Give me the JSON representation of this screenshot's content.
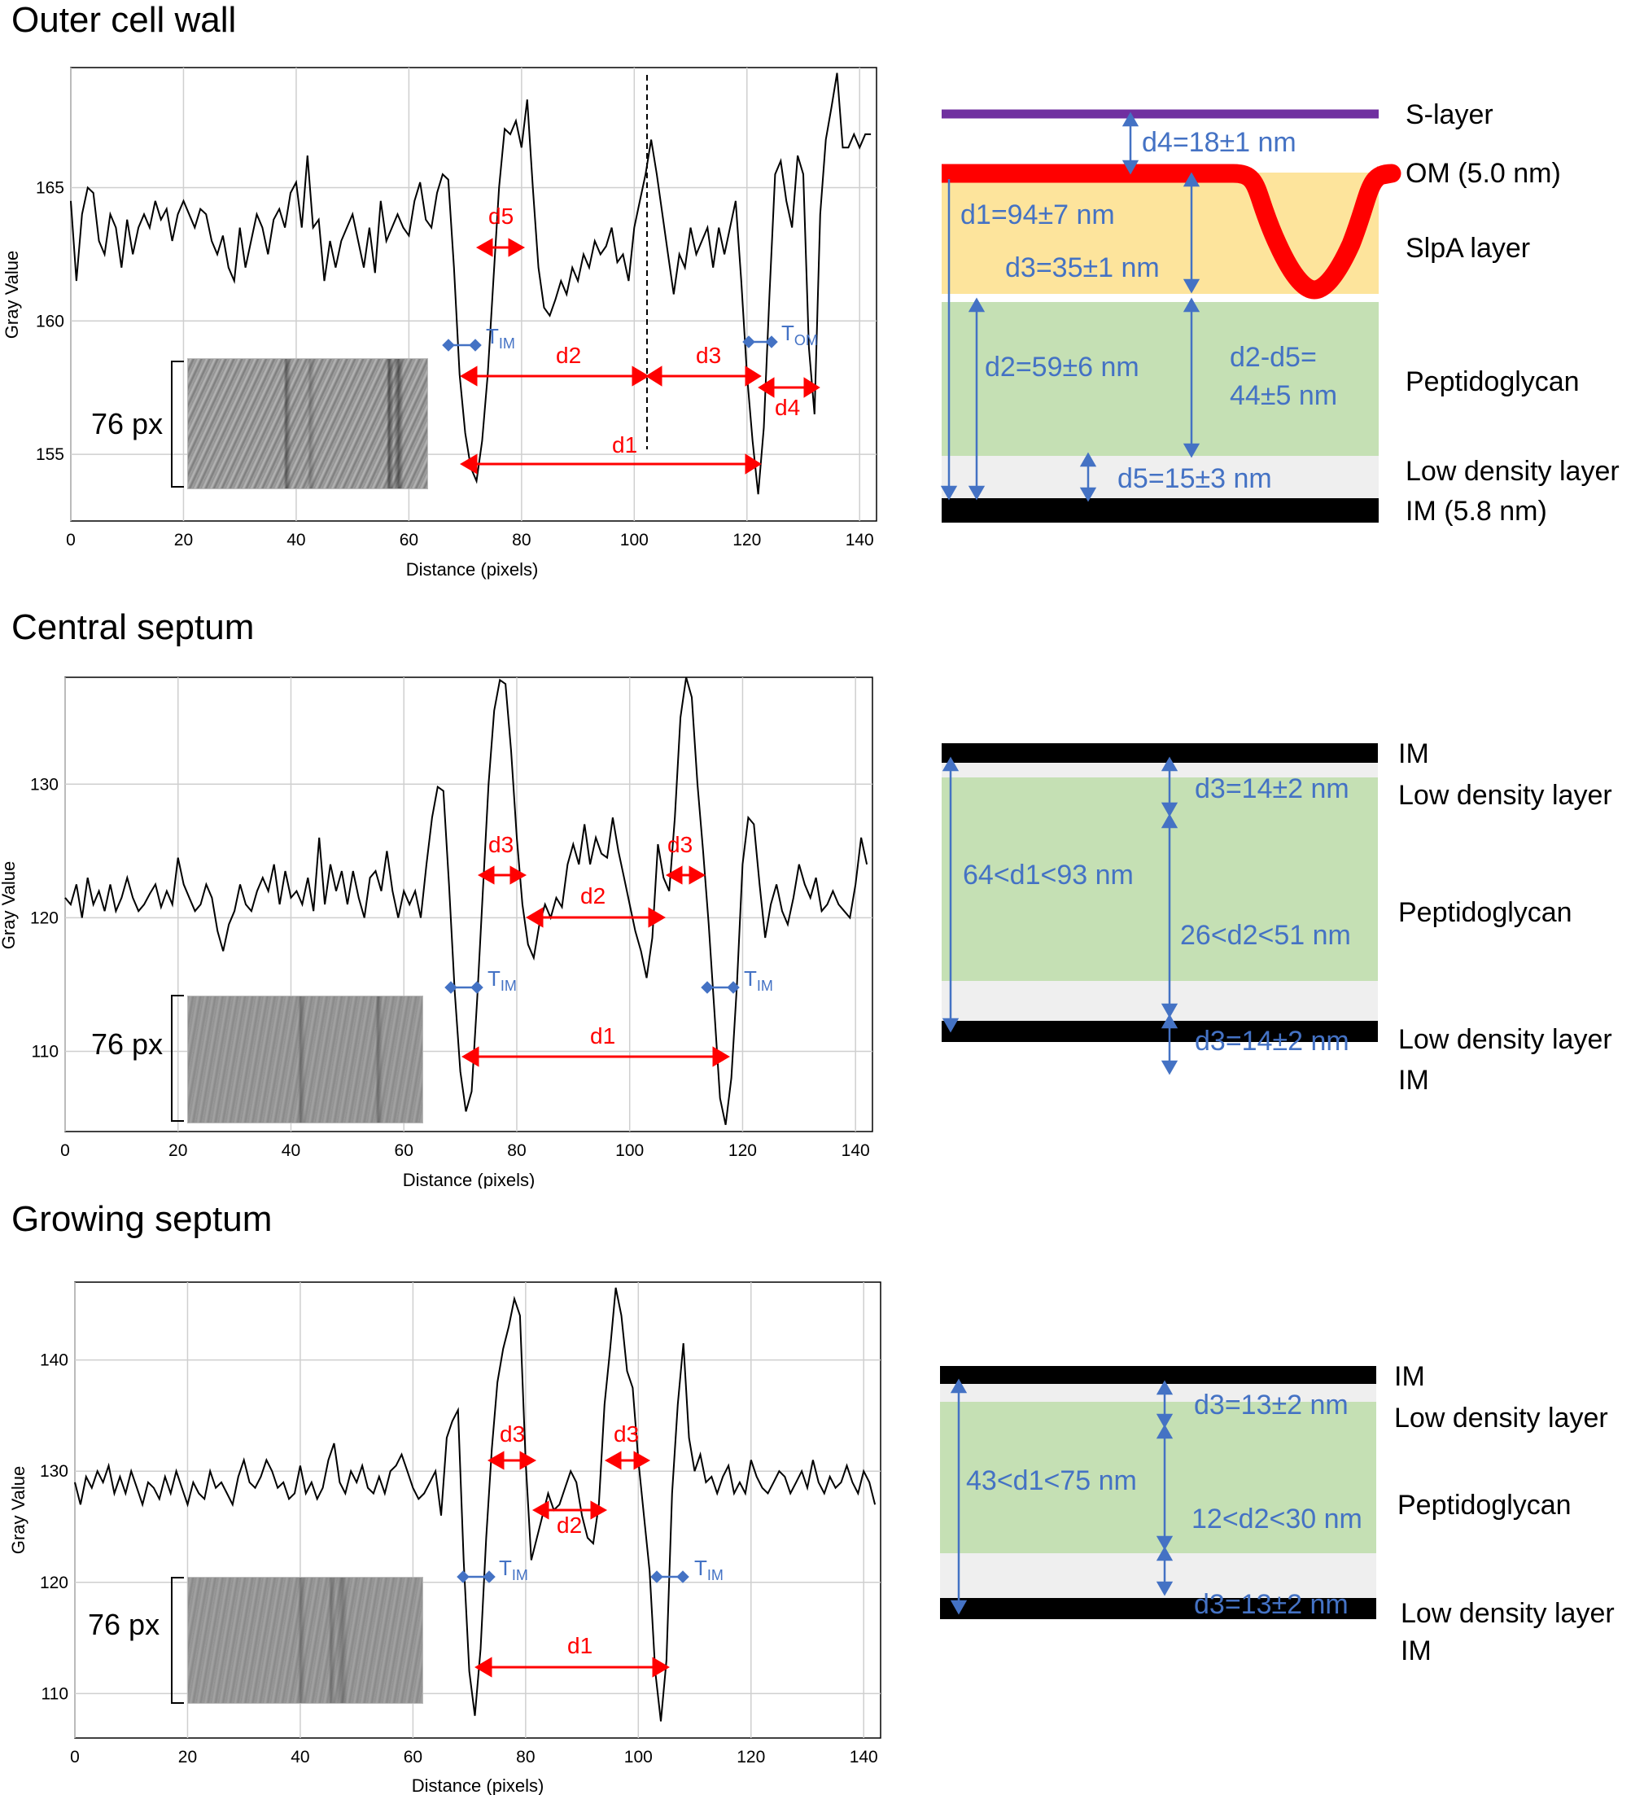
{
  "sections": [
    {
      "title": "Outer cell wall"
    },
    {
      "title": "Central septum"
    },
    {
      "title": "Growing septum"
    }
  ],
  "inset_label": "76 px",
  "chart_data": [
    {
      "type": "line",
      "xlabel": "Distance (pixels)",
      "ylabel": "Gray Value",
      "xlim": [
        0,
        143
      ],
      "ylim": [
        152.5,
        169.5
      ],
      "xticks": [
        0,
        20,
        40,
        60,
        80,
        100,
        120,
        140
      ],
      "yticks": [
        155,
        160,
        165
      ],
      "grid": true,
      "series": [
        {
          "x": [
            0,
            1,
            2,
            3,
            4,
            5,
            6,
            7,
            8,
            9,
            10,
            11,
            12,
            13,
            14,
            15,
            16,
            17,
            18,
            19,
            20,
            21,
            22,
            23,
            24,
            25,
            26,
            27,
            28,
            29,
            30,
            31,
            32,
            33,
            34,
            35,
            36,
            37,
            38,
            39,
            40,
            41,
            42,
            43,
            44,
            45,
            46,
            47,
            48,
            49,
            50,
            51,
            52,
            53,
            54,
            55,
            56,
            57,
            58,
            59,
            60,
            61,
            62,
            63,
            64,
            65,
            66,
            67,
            68,
            69,
            70,
            71,
            72,
            73,
            74,
            75,
            76,
            77,
            78,
            79,
            80,
            81,
            82,
            83,
            84,
            85,
            86,
            87,
            88,
            89,
            90,
            91,
            92,
            93,
            94,
            95,
            96,
            97,
            98,
            99,
            100,
            101,
            102,
            103,
            104,
            105,
            106,
            107,
            108,
            109,
            110,
            111,
            112,
            113,
            114,
            115,
            116,
            117,
            118,
            119,
            120,
            121,
            122,
            123,
            124,
            125,
            126,
            127,
            128,
            129,
            130,
            131,
            132,
            133,
            134,
            135,
            136,
            137,
            138,
            139,
            140,
            141,
            142
          ],
          "y": [
            164.5,
            161.5,
            164.0,
            165.0,
            164.8,
            163.0,
            162.5,
            164.0,
            163.5,
            162.0,
            163.8,
            162.5,
            163.5,
            164.0,
            163.5,
            164.5,
            163.8,
            164.2,
            163.0,
            164.0,
            164.5,
            164.0,
            163.5,
            164.2,
            164.0,
            163.0,
            162.5,
            163.2,
            162.0,
            161.5,
            163.5,
            162.0,
            163.0,
            164.0,
            163.5,
            162.5,
            163.8,
            164.2,
            163.5,
            164.8,
            165.2,
            163.5,
            166.2,
            163.5,
            163.8,
            161.5,
            163.0,
            162.0,
            163.0,
            163.5,
            164.0,
            163.0,
            162.0,
            163.5,
            161.8,
            164.5,
            163.0,
            163.5,
            164.0,
            163.5,
            163.2,
            164.5,
            165.2,
            163.8,
            163.5,
            164.8,
            165.5,
            165.3,
            162.0,
            158.0,
            155.8,
            154.5,
            154.0,
            155.5,
            158.0,
            161.5,
            165.0,
            167.2,
            167.0,
            167.5,
            166.5,
            168.3,
            165.0,
            162.0,
            160.5,
            160.2,
            160.8,
            161.5,
            161.0,
            162.0,
            161.5,
            162.5,
            162.0,
            163.0,
            162.5,
            162.8,
            163.5,
            162.2,
            162.5,
            161.5,
            163.5,
            164.5,
            165.5,
            166.8,
            165.5,
            164.0,
            162.5,
            161.0,
            162.5,
            162.0,
            163.5,
            162.5,
            163.0,
            163.5,
            162.0,
            163.5,
            162.5,
            163.5,
            164.5,
            161.5,
            158.0,
            155.5,
            153.5,
            156.0,
            161.0,
            165.5,
            166.0,
            164.5,
            163.5,
            166.2,
            165.5,
            159.0,
            156.5,
            164.0,
            166.8,
            168.0,
            169.3,
            166.5,
            166.5,
            167.0,
            166.5,
            167.0,
            167.0
          ]
        }
      ],
      "annotations": {
        "red": [
          "d5",
          "d2",
          "d3",
          "d4",
          "d1"
        ],
        "blue": [
          "T",
          "IM",
          "T",
          "OM"
        ]
      }
    },
    {
      "type": "line",
      "xlabel": "Distance (pixels)",
      "ylabel": "Gray Value",
      "xlim": [
        0,
        143
      ],
      "ylim": [
        104,
        138
      ],
      "xticks": [
        0,
        20,
        40,
        60,
        80,
        100,
        120,
        140
      ],
      "yticks": [
        110,
        120,
        130
      ],
      "grid": true,
      "series": [
        {
          "x": [
            0,
            1,
            2,
            3,
            4,
            5,
            6,
            7,
            8,
            9,
            10,
            11,
            12,
            13,
            14,
            15,
            16,
            17,
            18,
            19,
            20,
            21,
            22,
            23,
            24,
            25,
            26,
            27,
            28,
            29,
            30,
            31,
            32,
            33,
            34,
            35,
            36,
            37,
            38,
            39,
            40,
            41,
            42,
            43,
            44,
            45,
            46,
            47,
            48,
            49,
            50,
            51,
            52,
            53,
            54,
            55,
            56,
            57,
            58,
            59,
            60,
            61,
            62,
            63,
            64,
            65,
            66,
            67,
            68,
            69,
            70,
            71,
            72,
            73,
            74,
            75,
            76,
            77,
            78,
            79,
            80,
            81,
            82,
            83,
            84,
            85,
            86,
            87,
            88,
            89,
            90,
            91,
            92,
            93,
            94,
            95,
            96,
            97,
            98,
            99,
            100,
            101,
            102,
            103,
            104,
            105,
            106,
            107,
            108,
            109,
            110,
            111,
            112,
            113,
            114,
            115,
            116,
            117,
            118,
            119,
            120,
            121,
            122,
            123,
            124,
            125,
            126,
            127,
            128,
            129,
            130,
            131,
            132,
            133,
            134,
            135,
            136,
            137,
            138,
            139,
            140,
            141,
            142
          ],
          "y": [
            121.5,
            121.0,
            122.5,
            120.0,
            123.0,
            121.0,
            122.0,
            120.5,
            122.5,
            120.5,
            121.5,
            123.0,
            121.5,
            120.5,
            121.0,
            121.8,
            122.5,
            120.8,
            122.0,
            121.0,
            124.5,
            122.5,
            121.5,
            120.5,
            121.0,
            122.5,
            121.5,
            119.0,
            117.5,
            119.5,
            120.5,
            122.5,
            121.0,
            120.5,
            122.0,
            123.0,
            122.0,
            124.0,
            121.0,
            123.5,
            121.5,
            122.0,
            121.0,
            123.0,
            120.5,
            126.0,
            121.0,
            124.0,
            122.0,
            123.5,
            121.0,
            123.5,
            121.5,
            120.0,
            123.0,
            123.5,
            122.0,
            125.0,
            122.0,
            120.0,
            122.0,
            121.0,
            122.0,
            120.0,
            124.0,
            127.5,
            129.8,
            129.5,
            122.5,
            114.5,
            108.5,
            105.5,
            107.0,
            114.0,
            122.0,
            130.0,
            135.5,
            137.8,
            137.5,
            132.5,
            126.0,
            121.0,
            118.0,
            117.0,
            119.5,
            121.0,
            120.0,
            121.5,
            120.8,
            124.0,
            125.5,
            124.0,
            127.0,
            124.0,
            126.0,
            124.8,
            124.5,
            127.5,
            125.0,
            123.0,
            121.0,
            119.0,
            117.5,
            115.5,
            118.5,
            125.5,
            123.0,
            122.0,
            127.5,
            135.0,
            138.0,
            136.5,
            130.0,
            125.0,
            119.5,
            113.0,
            106.5,
            104.5,
            108.0,
            115.0,
            124.0,
            127.5,
            127.0,
            122.5,
            118.5,
            121.0,
            122.5,
            120.5,
            119.5,
            121.5,
            124.0,
            122.5,
            121.5,
            123.0,
            120.5,
            121.0,
            122.0,
            121.0,
            120.5,
            120.0,
            122.5,
            126.0,
            124.0
          ]
        }
      ],
      "annotations": {
        "red": [
          "d3",
          "d3",
          "d2",
          "d1"
        ],
        "blue": [
          "T",
          "IM",
          "T",
          "IM"
        ]
      }
    },
    {
      "type": "line",
      "xlabel": "Distance (pixels)",
      "ylabel": "Gray Value",
      "xlim": [
        0,
        143
      ],
      "ylim": [
        106,
        147
      ],
      "xticks": [
        0,
        20,
        40,
        60,
        80,
        100,
        120,
        140
      ],
      "yticks": [
        110,
        120,
        130,
        140
      ],
      "grid": true,
      "series": [
        {
          "x": [
            0,
            1,
            2,
            3,
            4,
            5,
            6,
            7,
            8,
            9,
            10,
            11,
            12,
            13,
            14,
            15,
            16,
            17,
            18,
            19,
            20,
            21,
            22,
            23,
            24,
            25,
            26,
            27,
            28,
            29,
            30,
            31,
            32,
            33,
            34,
            35,
            36,
            37,
            38,
            39,
            40,
            41,
            42,
            43,
            44,
            45,
            46,
            47,
            48,
            49,
            50,
            51,
            52,
            53,
            54,
            55,
            56,
            57,
            58,
            59,
            60,
            61,
            62,
            63,
            64,
            65,
            66,
            67,
            68,
            69,
            70,
            71,
            72,
            73,
            74,
            75,
            76,
            77,
            78,
            79,
            80,
            81,
            82,
            83,
            84,
            85,
            86,
            87,
            88,
            89,
            90,
            91,
            92,
            93,
            94,
            95,
            96,
            97,
            98,
            99,
            100,
            101,
            102,
            103,
            104,
            105,
            106,
            107,
            108,
            109,
            110,
            111,
            112,
            113,
            114,
            115,
            116,
            117,
            118,
            119,
            120,
            121,
            122,
            123,
            124,
            125,
            126,
            127,
            128,
            129,
            130,
            131,
            132,
            133,
            134,
            135,
            136,
            137,
            138,
            139,
            140,
            141,
            142
          ],
          "y": [
            129.0,
            127.0,
            129.5,
            128.5,
            130.0,
            129.0,
            130.5,
            128.0,
            129.5,
            128.0,
            130.0,
            128.5,
            127.0,
            129.0,
            128.5,
            127.5,
            129.5,
            128.0,
            130.0,
            128.5,
            127.0,
            129.0,
            128.0,
            127.5,
            130.0,
            128.5,
            129.0,
            128.0,
            127.0,
            129.5,
            131.0,
            129.0,
            128.5,
            129.5,
            131.0,
            130.0,
            128.5,
            129.0,
            127.5,
            128.0,
            130.5,
            128.0,
            129.0,
            127.5,
            128.5,
            131.0,
            132.5,
            129.0,
            128.0,
            130.0,
            129.0,
            130.5,
            128.5,
            128.0,
            129.5,
            128.0,
            130.0,
            130.5,
            131.5,
            130.0,
            128.5,
            127.5,
            128.0,
            129.0,
            130.0,
            126.0,
            133.0,
            134.5,
            135.5,
            122.0,
            112.0,
            108.0,
            114.0,
            124.0,
            132.0,
            138.0,
            141.0,
            143.0,
            145.5,
            144.0,
            131.0,
            122.0,
            124.0,
            126.0,
            128.0,
            126.5,
            127.0,
            128.5,
            130.0,
            129.0,
            126.0,
            124.0,
            123.5,
            127.0,
            136.0,
            141.0,
            146.5,
            144.0,
            139.0,
            137.5,
            131.0,
            126.0,
            121.0,
            112.0,
            107.5,
            113.0,
            128.0,
            136.0,
            141.5,
            133.0,
            130.0,
            131.5,
            129.0,
            129.5,
            128.0,
            129.5,
            130.5,
            128.0,
            129.0,
            128.0,
            131.0,
            129.5,
            128.5,
            128.0,
            129.0,
            130.0,
            129.5,
            128.0,
            129.0,
            130.0,
            128.5,
            131.0,
            129.0,
            128.0,
            129.5,
            128.5,
            129.0,
            130.5,
            129.0,
            128.0,
            130.0,
            129.0,
            127.0
          ]
        }
      ],
      "annotations": {
        "red": [
          "d3",
          "d3",
          "d2",
          "d1"
        ],
        "blue": [
          "T",
          "IM",
          "T",
          "IM"
        ]
      }
    }
  ],
  "diagrams": [
    {
      "labels": [
        "S-layer",
        "OM (5.0 nm)",
        "SlpA layer",
        "Peptidoglycan",
        "Low density layer",
        "IM (5.8 nm)"
      ],
      "measures": [
        "d4=18±1 nm",
        "d1=94±7 nm",
        "d3=35±1 nm",
        "d2=59±6 nm",
        "d2-d5=",
        "44±5 nm",
        "d5=15±3 nm"
      ],
      "colors": {
        "slayer": "#7030a0",
        "om": "#ff0000",
        "slpa": "#fde49c",
        "pg": "#c5e0b4",
        "low": "#efefef",
        "im": "#000000",
        "arrow": "#4472c4"
      }
    },
    {
      "labels": [
        "IM",
        "Low density layer",
        "Peptidoglycan",
        "Low density layer",
        "IM"
      ],
      "measures": [
        "d3=14±2 nm",
        "64<d1<93 nm",
        "26<d2<51 nm",
        "d3=14±2 nm"
      ]
    },
    {
      "labels": [
        "IM",
        "Low density layer",
        "Peptidoglycan",
        "Low density layer",
        "IM"
      ],
      "measures": [
        "d3=13±2 nm",
        "43<d1<75 nm",
        "12<d2<30 nm",
        "d3=13±2 nm"
      ]
    }
  ]
}
